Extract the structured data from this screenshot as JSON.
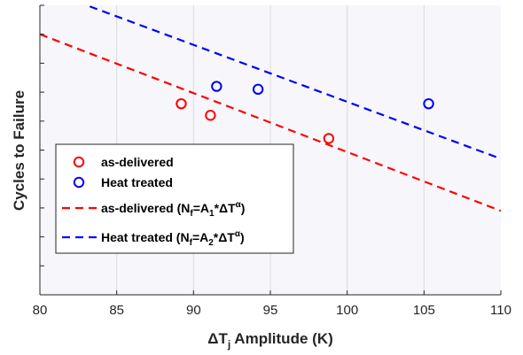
{
  "chart_data": {
    "type": "scatter",
    "xlabel": "ΔT",
    "xlabel_sub": "j",
    "xlabel_rest": " Amplitude (K)",
    "ylabel": "Cycles to Failure",
    "xlim": [
      80,
      110
    ],
    "ylim": [
      0,
      1
    ],
    "xticks": [
      80,
      85,
      90,
      95,
      100,
      105,
      110
    ],
    "grid": true,
    "legend_position": "lower-left",
    "colors": {
      "as_delivered": "#ff0000",
      "heat_treated": "#0000ff",
      "background": "#f7f7fb",
      "grid": "#dcdcdc"
    },
    "series": [
      {
        "name": "as-delivered",
        "kind": "markers",
        "color": "#ff0000",
        "x": [
          89.2,
          91.1,
          98.8
        ],
        "y": [
          0.66,
          0.62,
          0.54
        ]
      },
      {
        "name": "Heat treated",
        "kind": "markers",
        "color": "#0000ff",
        "x": [
          91.5,
          94.2,
          105.3
        ],
        "y": [
          0.72,
          0.71,
          0.66
        ]
      },
      {
        "name": "as-delivered fit",
        "kind": "dashed-line",
        "color": "#ff0000",
        "x": [
          80,
          110
        ],
        "y": [
          0.9,
          0.29
        ]
      },
      {
        "name": "Heat treated fit",
        "kind": "dashed-line",
        "color": "#0000ff",
        "x": [
          80,
          110
        ],
        "y": [
          1.06,
          0.47
        ]
      }
    ],
    "legend": [
      {
        "series": 0,
        "label": "as-delivered"
      },
      {
        "series": 1,
        "label": "Heat treated"
      },
      {
        "series": 2,
        "label_main": "as-delivered (N",
        "label_sub1": "f",
        "label_mid": "=A",
        "label_sub2": "1",
        "label_tail": "*ΔT",
        "label_sup": "α",
        "label_end": ")"
      },
      {
        "series": 3,
        "label_main": "Heat treated (N",
        "label_sub1": "f",
        "label_mid": "=A",
        "label_sub2": "2",
        "label_tail": "*ΔT",
        "label_sup": "α",
        "label_end": ")"
      }
    ]
  }
}
